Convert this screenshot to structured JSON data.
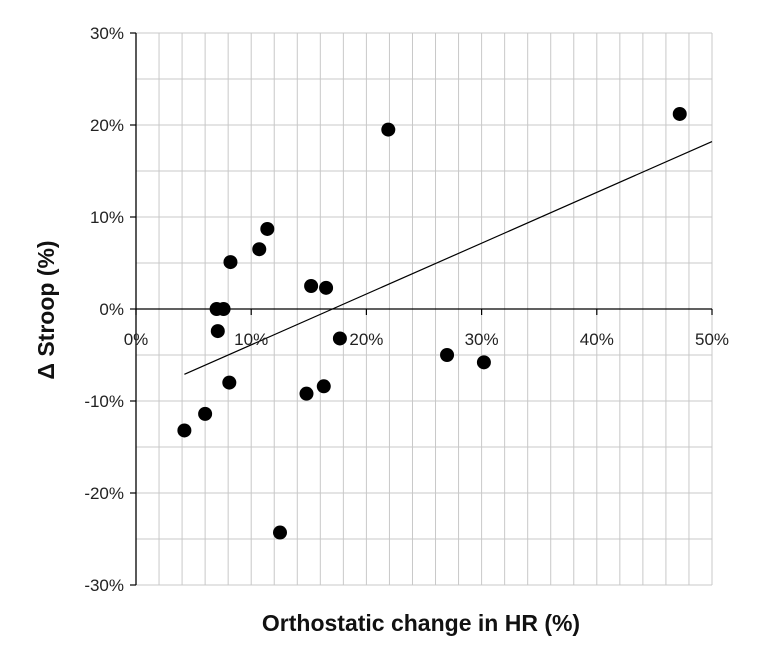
{
  "chart_data": {
    "type": "scatter",
    "title": "",
    "xlabel": "Orthostatic change in HR (%)",
    "ylabel": "Δ Stroop (%)",
    "xlim": [
      0,
      50
    ],
    "ylim": [
      -30,
      30
    ],
    "x_ticks": [
      0,
      10,
      20,
      30,
      40,
      50
    ],
    "x_tick_labels": [
      "0%",
      "10%",
      "20%",
      "30%",
      "40%",
      "50%"
    ],
    "y_ticks": [
      -30,
      -20,
      -10,
      0,
      10,
      20,
      30
    ],
    "y_tick_labels": [
      "-30%",
      "-20%",
      "-10%",
      "0%",
      "10%",
      "20%",
      "30%"
    ],
    "grid": true,
    "x_minor_step": 2,
    "y_minor_step": 5,
    "legend": "none",
    "marker_color": "#000000",
    "trendline_color": "#000000",
    "grid_color": "#c8c8c8",
    "series": [
      {
        "points": [
          {
            "x": 4.2,
            "y": -13.2
          },
          {
            "x": 6.0,
            "y": -11.4
          },
          {
            "x": 7.0,
            "y": 0.0
          },
          {
            "x": 7.6,
            "y": 0.0
          },
          {
            "x": 7.1,
            "y": -2.4
          },
          {
            "x": 8.1,
            "y": -8.0
          },
          {
            "x": 8.2,
            "y": 5.1
          },
          {
            "x": 10.7,
            "y": 6.5
          },
          {
            "x": 11.4,
            "y": 8.7
          },
          {
            "x": 12.5,
            "y": -24.3
          },
          {
            "x": 14.8,
            "y": -9.2
          },
          {
            "x": 15.2,
            "y": 2.5
          },
          {
            "x": 16.3,
            "y": -8.4
          },
          {
            "x": 16.5,
            "y": 2.3
          },
          {
            "x": 17.7,
            "y": -3.2
          },
          {
            "x": 21.9,
            "y": 19.5
          },
          {
            "x": 27.0,
            "y": -5.0
          },
          {
            "x": 30.2,
            "y": -5.8
          },
          {
            "x": 47.2,
            "y": 21.2
          }
        ]
      }
    ],
    "trendline": {
      "type": "linear",
      "x_start": 4.2,
      "y_start": -7.1,
      "x_end": 50.0,
      "y_end": 18.2
    }
  }
}
